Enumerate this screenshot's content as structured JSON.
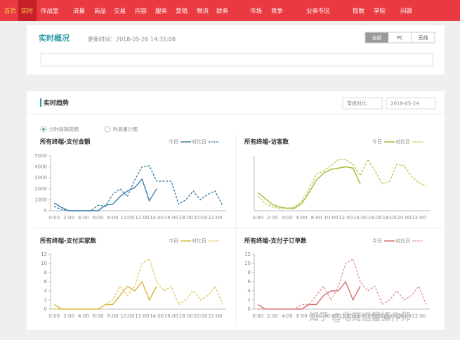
{
  "nav": [
    "首页",
    "实时",
    "作战室",
    "流量",
    "商品",
    "交易",
    "内容",
    "服务",
    "营销",
    "物流",
    "财务",
    "市场",
    "竞争",
    "业务专区",
    "取数",
    "学院",
    "问题"
  ],
  "overview": {
    "title": "实时概况",
    "updated": "更新时间：2018-05-26 14:35:08",
    "buttons": [
      "全部",
      "PC",
      "无线"
    ]
  },
  "trend": {
    "title": "实时趋势",
    "compare": "常规对比",
    "date": "2018-05-24",
    "radios": [
      "分时段趋势图",
      "时段累计图"
    ]
  },
  "watermark": "知乎 @电商运营操作师",
  "chart_data": [
    {
      "type": "line",
      "title": "所有终端-支付金额",
      "categories": [
        "0:00",
        null,
        "2:00",
        null,
        "4:00",
        null,
        "6:00",
        null,
        "8:00",
        null,
        "10:00",
        null,
        "12:00",
        null,
        "14:00",
        null,
        "16:00",
        null,
        "18:00",
        null,
        "20:00",
        null,
        "22:00",
        null
      ],
      "ylim": [
        0,
        5000
      ],
      "yticks": [
        0,
        1000,
        2000,
        3000,
        4000,
        5000
      ],
      "series": [
        {
          "name": "今日",
          "color": "#3d7fa8",
          "values": [
            700,
            300,
            0,
            0,
            0,
            0,
            0,
            500,
            600,
            1300,
            1800,
            2100,
            2900,
            900,
            2000,
            null,
            null,
            null,
            null,
            null,
            null,
            null,
            null,
            null
          ]
        },
        {
          "name": "对比日",
          "color": "#3d7fa8",
          "dashed": true,
          "values": [
            400,
            100,
            0,
            0,
            0,
            0,
            500,
            400,
            1500,
            2000,
            1300,
            2800,
            4000,
            4100,
            2700,
            2700,
            2700,
            600,
            1000,
            1800,
            1000,
            1500,
            1800,
            500
          ]
        }
      ]
    },
    {
      "type": "line",
      "title": "所有终端-访客数",
      "categories": [
        "0:00",
        null,
        "2:00",
        null,
        "4:00",
        null,
        "6:00",
        null,
        "8:00",
        null,
        "10:00",
        null,
        "12:00",
        null,
        "14:00",
        null,
        "16:00",
        null,
        "18:00",
        null,
        "20:00",
        null,
        "22:00",
        null
      ],
      "ylim": [
        0,
        450
      ],
      "series": [
        {
          "name": "今日",
          "color": "#9ebc2e",
          "values": [
            150,
            100,
            50,
            30,
            20,
            20,
            60,
            150,
            250,
            310,
            340,
            350,
            360,
            350,
            220,
            null,
            null,
            null,
            null,
            null,
            null,
            null,
            null,
            null
          ]
        },
        {
          "name": "对比日",
          "color": "#b6cc55",
          "dashed": true,
          "values": [
            120,
            60,
            30,
            20,
            20,
            30,
            80,
            180,
            300,
            330,
            370,
            420,
            420,
            380,
            290,
            420,
            330,
            220,
            240,
            380,
            370,
            280,
            230,
            200
          ]
        }
      ]
    },
    {
      "type": "line",
      "title": "所有终端-支付买家数",
      "categories": [
        "0:00",
        null,
        "2:00",
        null,
        "4:00",
        null,
        "6:00",
        null,
        "8:00",
        null,
        "10:00",
        null,
        "12:00",
        null,
        "14:00",
        null,
        "16:00",
        null,
        "18:00",
        null,
        "20:00",
        null,
        "22:00",
        null
      ],
      "ylim": [
        0,
        12
      ],
      "yticks": [
        0,
        2,
        4,
        6,
        8,
        10,
        12
      ],
      "series": [
        {
          "name": "今日",
          "color": "#d9b53c",
          "values": [
            1,
            0,
            0,
            0,
            0,
            0,
            0,
            1,
            1,
            3,
            5,
            4,
            6,
            2,
            5,
            null,
            null,
            null,
            null,
            null,
            null,
            null,
            null,
            null
          ]
        },
        {
          "name": "对比日",
          "color": "#e3c860",
          "dashed": true,
          "values": [
            0,
            0,
            0,
            0,
            0,
            0,
            0,
            1,
            2,
            5,
            3,
            5,
            10,
            11,
            6,
            4,
            5,
            1,
            2,
            4,
            2,
            3,
            5,
            1
          ]
        }
      ]
    },
    {
      "type": "line",
      "title": "所有终端-支付子订单数",
      "categories": [
        "0:00",
        null,
        "2:00",
        null,
        "4:00",
        null,
        "6:00",
        null,
        "8:00",
        null,
        "10:00",
        null,
        "12:00",
        null,
        "14:00",
        null,
        "16:00",
        null,
        "18:00",
        null,
        "20:00",
        null,
        "22:00",
        null
      ],
      "ylim": [
        0,
        12
      ],
      "yticks": [
        0,
        2,
        4,
        6,
        8,
        10,
        12
      ],
      "series": [
        {
          "name": "今日",
          "color": "#d9706e",
          "values": [
            1,
            0,
            0,
            0,
            0,
            0,
            0,
            1,
            1,
            3,
            4,
            4,
            6,
            2,
            5,
            null,
            null,
            null,
            null,
            null,
            null,
            null,
            null,
            null
          ]
        },
        {
          "name": "对比日",
          "color": "#e39a98",
          "dashed": true,
          "values": [
            0,
            0,
            0,
            0,
            0,
            0,
            1,
            1,
            3,
            5,
            2,
            5,
            10,
            11,
            6,
            4,
            5,
            1,
            2,
            4,
            2,
            3,
            5,
            1
          ]
        }
      ]
    }
  ]
}
